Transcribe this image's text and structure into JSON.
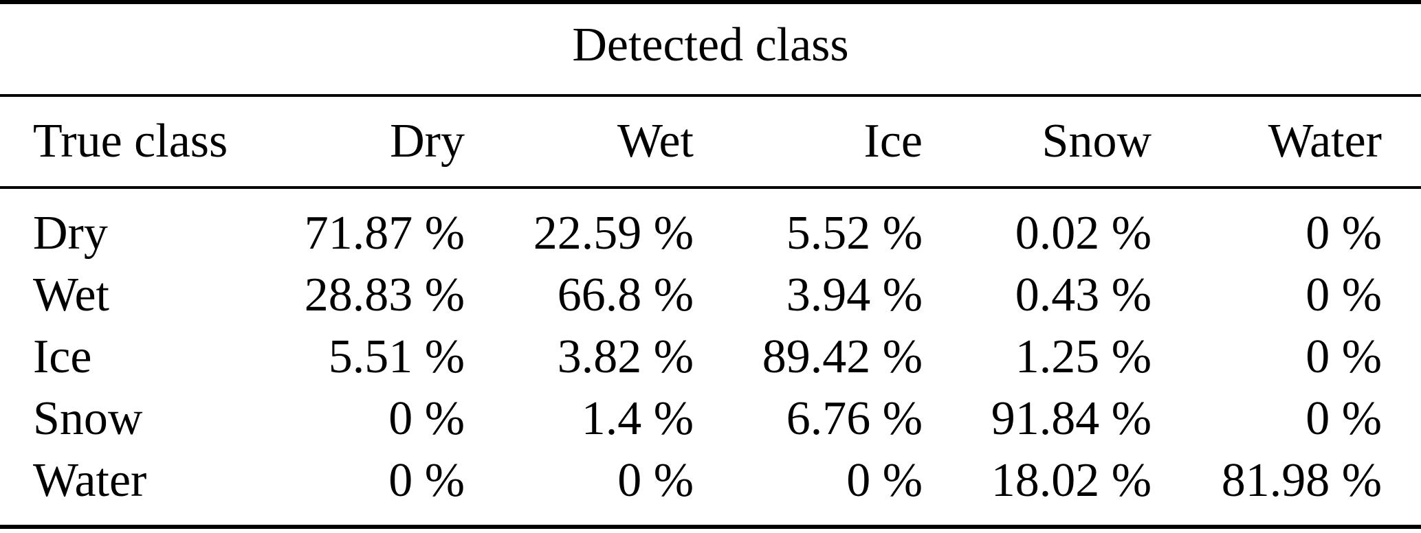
{
  "table": {
    "spanner": "Detected class",
    "header": {
      "row_label": "True class",
      "columns": [
        "Dry",
        "Wet",
        "Ice",
        "Snow",
        "Water"
      ]
    },
    "rows": [
      {
        "label": "Dry",
        "values": [
          "71.87 %",
          "22.59 %",
          "5.52 %",
          "0.02 %",
          "0 %"
        ]
      },
      {
        "label": "Wet",
        "values": [
          "28.83 %",
          "66.8 %",
          "3.94 %",
          "0.43 %",
          "0 %"
        ]
      },
      {
        "label": "Ice",
        "values": [
          "5.51 %",
          "3.82 %",
          "89.42 %",
          "1.25 %",
          "0 %"
        ]
      },
      {
        "label": "Snow",
        "values": [
          "0 %",
          "1.4 %",
          "6.76 %",
          "91.84 %",
          "0 %"
        ]
      },
      {
        "label": "Water",
        "values": [
          "0 %",
          "0 %",
          "0 %",
          "18.02 %",
          "81.98 %"
        ]
      }
    ]
  },
  "chart_data": {
    "type": "table",
    "title": "Detected class",
    "row_header": "True class",
    "columns": [
      "Dry",
      "Wet",
      "Ice",
      "Snow",
      "Water"
    ],
    "unit": "%",
    "rows": [
      {
        "true_class": "Dry",
        "values": [
          71.87,
          22.59,
          5.52,
          0.02,
          0
        ]
      },
      {
        "true_class": "Wet",
        "values": [
          28.83,
          66.8,
          3.94,
          0.43,
          0
        ]
      },
      {
        "true_class": "Ice",
        "values": [
          5.51,
          3.82,
          89.42,
          1.25,
          0
        ]
      },
      {
        "true_class": "Snow",
        "values": [
          0,
          1.4,
          6.76,
          91.84,
          0
        ]
      },
      {
        "true_class": "Water",
        "values": [
          0,
          0,
          0,
          18.02,
          81.98
        ]
      }
    ]
  },
  "colors": {
    "text": "#000000",
    "background": "#ffffff",
    "rule": "#000000"
  }
}
